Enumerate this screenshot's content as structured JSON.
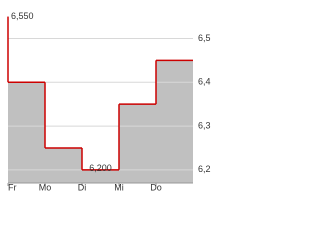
{
  "chart_data": {
    "type": "step-area",
    "x": [
      0,
      0,
      1,
      2,
      3,
      4
    ],
    "values": [
      6.55,
      6.4,
      6.25,
      6.2,
      6.35,
      6.45
    ],
    "color": "#c0c0c0",
    "line_color": "#cc0000",
    "xlim": [
      0,
      5
    ],
    "xticks": [
      {
        "value": 0,
        "label": "Fr"
      },
      {
        "value": 1,
        "label": "Mo"
      },
      {
        "value": 2,
        "label": "Di"
      },
      {
        "value": 3,
        "label": "Mi"
      },
      {
        "value": 4,
        "label": "Do"
      }
    ],
    "ylim": [
      6.17,
      6.565
    ],
    "yticks": [
      {
        "value": 6.2,
        "label": "6,2"
      },
      {
        "value": 6.3,
        "label": "6,3"
      },
      {
        "value": 6.4,
        "label": "6,4"
      },
      {
        "value": 6.5,
        "label": "6,5"
      }
    ],
    "grid": true,
    "annotations": [
      {
        "label": "6,550",
        "x": 0,
        "value": 6.55
      },
      {
        "label": "6,200",
        "x": 2,
        "value": 6.2
      }
    ]
  }
}
